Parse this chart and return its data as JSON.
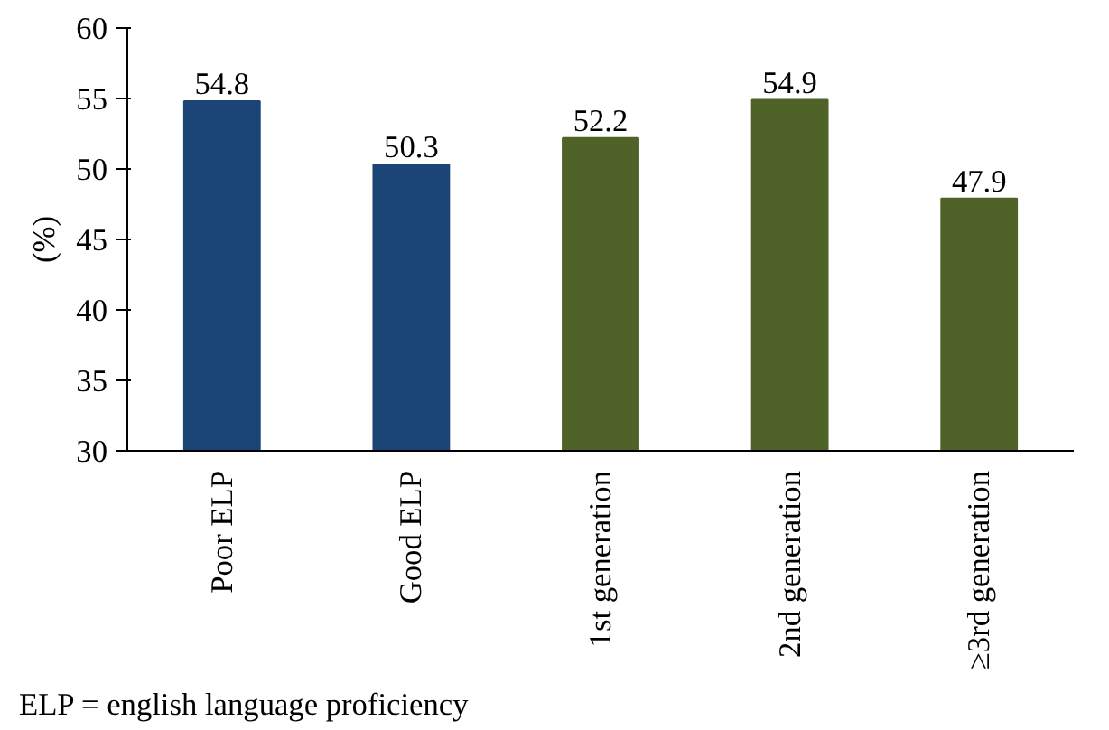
{
  "chart_data": {
    "type": "bar",
    "ylabel": "(%)",
    "categories": [
      "Poor ELP",
      "Good ELP",
      "1st generation",
      "2nd generation",
      "≥3rd generation"
    ],
    "values": [
      54.8,
      50.3,
      52.2,
      54.9,
      47.9
    ],
    "colors": [
      "#1c4577",
      "#1c4577",
      "#4f6228",
      "#4f6228",
      "#4f6228"
    ],
    "ylim": [
      30,
      60
    ],
    "yticks": [
      30,
      35,
      40,
      45,
      50,
      55,
      60
    ],
    "grid": false,
    "data_labels": true,
    "annotations": [
      "ELP = english language proficiency"
    ]
  }
}
